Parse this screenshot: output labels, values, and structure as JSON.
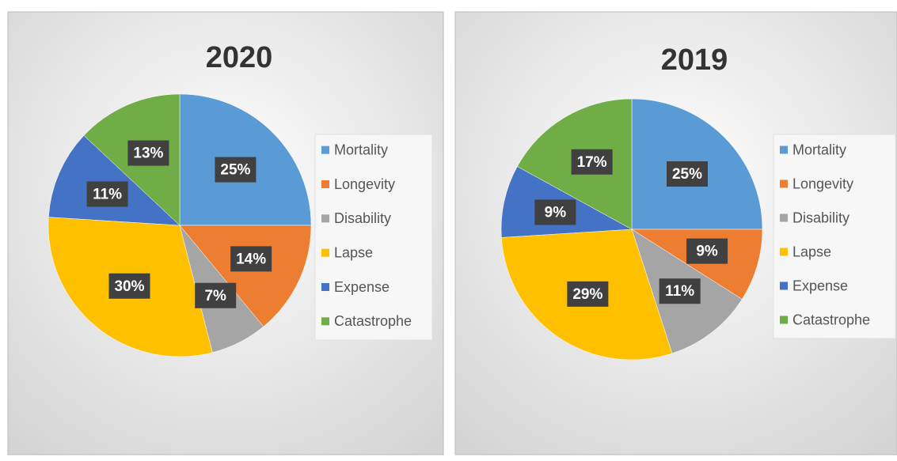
{
  "chart_data": [
    {
      "type": "pie",
      "title": "2020",
      "categories": [
        "Mortality",
        "Longevity",
        "Disability",
        "Lapse",
        "Expense",
        "Catastrophe"
      ],
      "values": [
        25,
        14,
        7,
        30,
        11,
        13
      ],
      "value_labels": [
        "25%",
        "14%",
        "7%",
        "30%",
        "11%",
        "13%"
      ],
      "colors": [
        "#5b9bd5",
        "#ed7d31",
        "#a5a5a5",
        "#ffc000",
        "#4472c4",
        "#70ad47"
      ],
      "legend": "right"
    },
    {
      "type": "pie",
      "title": "2019",
      "categories": [
        "Mortality",
        "Longevity",
        "Disability",
        "Lapse",
        "Expense",
        "Catastrophe"
      ],
      "values": [
        25,
        9,
        11,
        29,
        9,
        17
      ],
      "value_labels": [
        "25%",
        "9%",
        "11%",
        "29%",
        "9%",
        "17%"
      ],
      "colors": [
        "#5b9bd5",
        "#ed7d31",
        "#a5a5a5",
        "#ffc000",
        "#4472c4",
        "#70ad47"
      ],
      "legend": "right"
    }
  ]
}
